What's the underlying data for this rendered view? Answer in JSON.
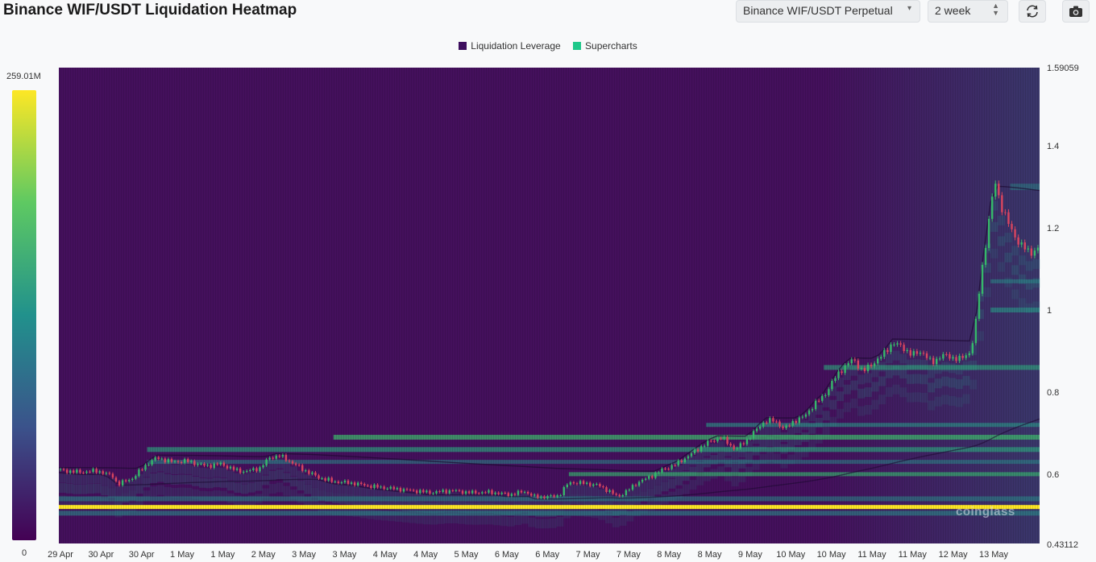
{
  "header": {
    "title": "Binance WIF/USDT Liquidation Heatmap",
    "market_select": "Binance WIF/USDT Perpetual",
    "range_select": "2 week"
  },
  "legend": {
    "items": [
      {
        "label": "Liquidation Leverage",
        "color": "#3d0e5e"
      },
      {
        "label": "Supercharts",
        "color": "#1ec88a"
      }
    ]
  },
  "colorbar": {
    "max_label": "259.01M",
    "min_label": "0"
  },
  "watermark": "coinglass",
  "chart_data": {
    "type": "heatmap",
    "title": "Binance WIF/USDT Liquidation Heatmap",
    "y_tick_labels": [
      "1.59059",
      "1.4",
      "1.2",
      "1",
      "0.8",
      "0.6",
      "0.43112"
    ],
    "ylim": [
      0.43112,
      1.59059
    ],
    "x_tick_labels": [
      "29 Apr",
      "30 Apr",
      "30 Apr",
      "1 May",
      "1 May",
      "2 May",
      "3 May",
      "3 May",
      "4 May",
      "4 May",
      "5 May",
      "6 May",
      "6 May",
      "7 May",
      "7 May",
      "8 May",
      "8 May",
      "9 May",
      "10 May",
      "10 May",
      "11 May",
      "11 May",
      "12 May",
      "13 May"
    ],
    "colorscale": [
      "#440154",
      "#3b528b",
      "#21918c",
      "#5ec962",
      "#fde725"
    ],
    "value_range": [
      0,
      259010000
    ],
    "price_series": [
      {
        "t": 0.0,
        "v": 0.61
      },
      {
        "t": 0.02,
        "v": 0.605
      },
      {
        "t": 0.04,
        "v": 0.608
      },
      {
        "t": 0.055,
        "v": 0.595
      },
      {
        "t": 0.06,
        "v": 0.575
      },
      {
        "t": 0.075,
        "v": 0.59
      },
      {
        "t": 0.09,
        "v": 0.625
      },
      {
        "t": 0.1,
        "v": 0.64
      },
      {
        "t": 0.115,
        "v": 0.63
      },
      {
        "t": 0.13,
        "v": 0.632
      },
      {
        "t": 0.15,
        "v": 0.62
      },
      {
        "t": 0.165,
        "v": 0.625
      },
      {
        "t": 0.18,
        "v": 0.61
      },
      {
        "t": 0.19,
        "v": 0.606
      },
      {
        "t": 0.205,
        "v": 0.615
      },
      {
        "t": 0.215,
        "v": 0.64
      },
      {
        "t": 0.225,
        "v": 0.645
      },
      {
        "t": 0.235,
        "v": 0.632
      },
      {
        "t": 0.25,
        "v": 0.61
      },
      {
        "t": 0.265,
        "v": 0.592
      },
      {
        "t": 0.28,
        "v": 0.582
      },
      {
        "t": 0.3,
        "v": 0.578
      },
      {
        "t": 0.32,
        "v": 0.57
      },
      {
        "t": 0.34,
        "v": 0.565
      },
      {
        "t": 0.36,
        "v": 0.56
      },
      {
        "t": 0.38,
        "v": 0.555
      },
      {
        "t": 0.4,
        "v": 0.56
      },
      {
        "t": 0.42,
        "v": 0.555
      },
      {
        "t": 0.44,
        "v": 0.556
      },
      {
        "t": 0.46,
        "v": 0.55
      },
      {
        "t": 0.475,
        "v": 0.558
      },
      {
        "t": 0.485,
        "v": 0.545
      },
      {
        "t": 0.5,
        "v": 0.545
      },
      {
        "t": 0.51,
        "v": 0.548
      },
      {
        "t": 0.52,
        "v": 0.58
      },
      {
        "t": 0.535,
        "v": 0.578
      },
      {
        "t": 0.55,
        "v": 0.573
      },
      {
        "t": 0.56,
        "v": 0.56
      },
      {
        "t": 0.57,
        "v": 0.545
      },
      {
        "t": 0.58,
        "v": 0.56
      },
      {
        "t": 0.59,
        "v": 0.58
      },
      {
        "t": 0.6,
        "v": 0.59
      },
      {
        "t": 0.615,
        "v": 0.61
      },
      {
        "t": 0.63,
        "v": 0.625
      },
      {
        "t": 0.645,
        "v": 0.65
      },
      {
        "t": 0.66,
        "v": 0.675
      },
      {
        "t": 0.675,
        "v": 0.69
      },
      {
        "t": 0.69,
        "v": 0.66
      },
      {
        "t": 0.7,
        "v": 0.68
      },
      {
        "t": 0.71,
        "v": 0.705
      },
      {
        "t": 0.72,
        "v": 0.73
      },
      {
        "t": 0.73,
        "v": 0.73
      },
      {
        "t": 0.74,
        "v": 0.71
      },
      {
        "t": 0.75,
        "v": 0.73
      },
      {
        "t": 0.76,
        "v": 0.74
      },
      {
        "t": 0.77,
        "v": 0.77
      },
      {
        "t": 0.78,
        "v": 0.79
      },
      {
        "t": 0.79,
        "v": 0.83
      },
      {
        "t": 0.8,
        "v": 0.86
      },
      {
        "t": 0.81,
        "v": 0.88
      },
      {
        "t": 0.82,
        "v": 0.85
      },
      {
        "t": 0.83,
        "v": 0.87
      },
      {
        "t": 0.84,
        "v": 0.89
      },
      {
        "t": 0.85,
        "v": 0.92
      },
      {
        "t": 0.86,
        "v": 0.91
      },
      {
        "t": 0.87,
        "v": 0.89
      },
      {
        "t": 0.88,
        "v": 0.9
      },
      {
        "t": 0.89,
        "v": 0.87
      },
      {
        "t": 0.9,
        "v": 0.89
      },
      {
        "t": 0.91,
        "v": 0.885
      },
      {
        "t": 0.92,
        "v": 0.88
      },
      {
        "t": 0.93,
        "v": 0.9
      },
      {
        "t": 0.935,
        "v": 0.97
      },
      {
        "t": 0.94,
        "v": 1.08
      },
      {
        "t": 0.945,
        "v": 1.16
      },
      {
        "t": 0.95,
        "v": 1.25
      },
      {
        "t": 0.955,
        "v": 1.31
      },
      {
        "t": 0.96,
        "v": 1.26
      },
      {
        "t": 0.97,
        "v": 1.2
      },
      {
        "t": 0.98,
        "v": 1.16
      },
      {
        "t": 0.99,
        "v": 1.14
      },
      {
        "t": 1.0,
        "v": 1.15
      }
    ]
  }
}
